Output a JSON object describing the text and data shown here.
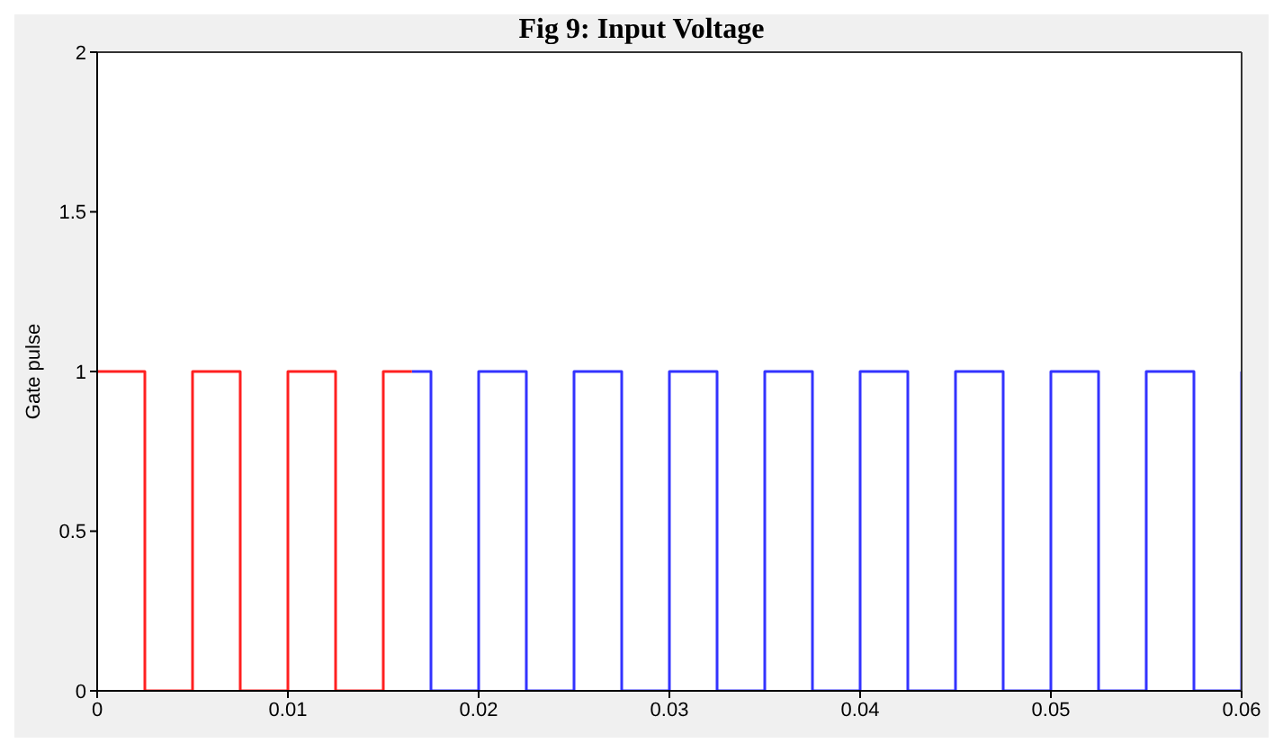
{
  "chart_data": {
    "type": "step",
    "title": "Fig 9: Input Voltage",
    "ylabel": "Gate pulse",
    "series": [
      {
        "color": "#3333ff",
        "x": [
          0.0165,
          0.0175,
          0.02,
          0.0225,
          0.025,
          0.0275,
          0.03,
          0.0325,
          0.035,
          0.0375,
          0.04,
          0.0425,
          0.045,
          0.0475,
          0.05,
          0.0525,
          0.055,
          0.0575,
          0.06
        ],
        "values": [
          1,
          0,
          1,
          0,
          1,
          0,
          1,
          0,
          1,
          0,
          1,
          0,
          1,
          0,
          1,
          0,
          1,
          0,
          1
        ]
      },
      {
        "color": "#ff2020",
        "x": [
          0,
          0.0025,
          0.005,
          0.0075,
          0.01,
          0.0125,
          0.015,
          0.0165
        ],
        "values": [
          1,
          0,
          1,
          0,
          1,
          0,
          1,
          1
        ]
      }
    ],
    "xlim": [
      0,
      0.06
    ],
    "xticks": [
      0,
      0.01,
      0.02,
      0.03,
      0.04,
      0.05,
      0.06
    ],
    "ylim": [
      0,
      2
    ],
    "yticks": [
      0,
      0.5,
      1,
      1.5,
      2
    ],
    "legend": false,
    "marker": "none",
    "line_style": "solid"
  }
}
